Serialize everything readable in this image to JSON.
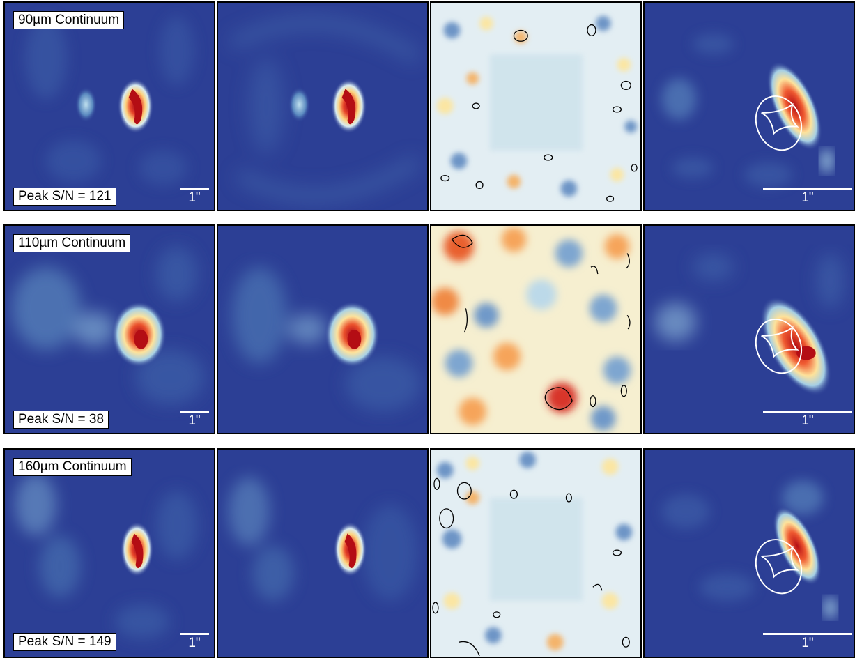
{
  "rows": [
    {
      "continuum_label": "90µm Continuum",
      "peak_sn_label": "Peak S/N = 121",
      "scale_label_small": "1\"",
      "scale_label_large": "1\""
    },
    {
      "continuum_label": "110µm Continuum",
      "peak_sn_label": "Peak S/N = 38",
      "scale_label_small": "1\"",
      "scale_label_large": "1\""
    },
    {
      "continuum_label": "160µm Continuum",
      "peak_sn_label": "Peak S/N = 149",
      "scale_label_small": "1\"",
      "scale_label_large": "1\""
    }
  ],
  "colors": {
    "background_map": "#2c3f95",
    "residual_background": "#d3e6f0",
    "peak": "#b40d14",
    "contour": "#000000",
    "overlay": "#ffffff"
  }
}
